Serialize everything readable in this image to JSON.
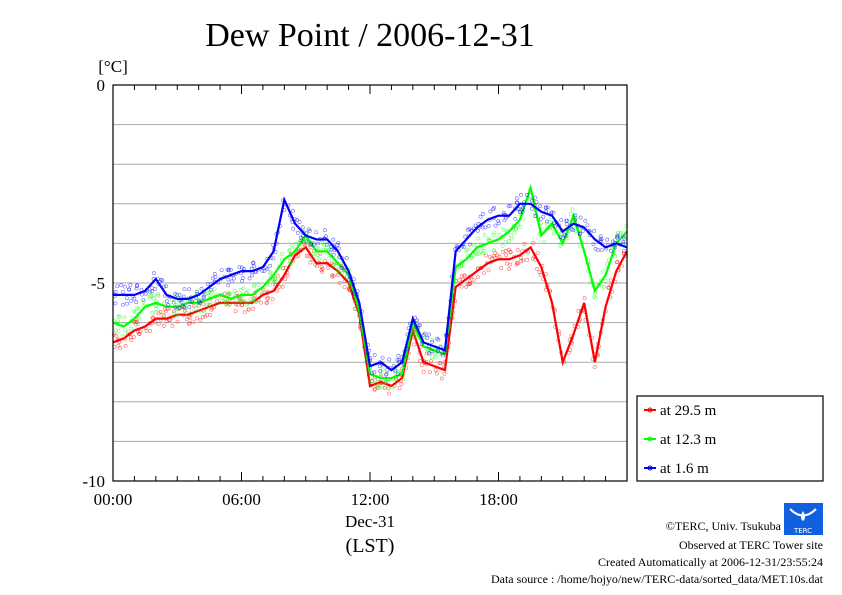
{
  "chart_data": {
    "type": "line",
    "title": "Dew Point / 2006-12-31",
    "ylabel": "[°C]",
    "xlabel": "(LST)",
    "date_label": "Dec-31",
    "ylim": [
      -10,
      0
    ],
    "xlim": [
      0,
      24
    ],
    "y_ticks": [
      {
        "v": 0,
        "label": "0"
      },
      {
        "v": -5,
        "label": "-5"
      },
      {
        "v": -10,
        "label": "-10"
      }
    ],
    "x_ticks": [
      {
        "v": 0,
        "label": "00:00"
      },
      {
        "v": 6,
        "label": "06:00"
      },
      {
        "v": 12,
        "label": "12:00"
      },
      {
        "v": 18,
        "label": "18:00"
      }
    ],
    "grid": true,
    "legend_position": "right-bottom-outside",
    "x": [
      0,
      0.5,
      1,
      1.5,
      2,
      2.5,
      3,
      3.5,
      4,
      4.5,
      5,
      5.5,
      6,
      6.5,
      7,
      7.5,
      8,
      8.5,
      9,
      9.5,
      10,
      10.5,
      11,
      11.5,
      12,
      12.5,
      13,
      13.5,
      14,
      14.5,
      15,
      15.5,
      16,
      16.5,
      17,
      17.5,
      18,
      18.5,
      19,
      19.5,
      20,
      20.5,
      21,
      21.5,
      22,
      22.5,
      23,
      23.5,
      24
    ],
    "series": [
      {
        "name": "at 29.5 m",
        "color": "#ff0000",
        "values": [
          -6.5,
          -6.4,
          -6.2,
          -6.1,
          -5.9,
          -5.9,
          -5.8,
          -5.8,
          -5.7,
          -5.6,
          -5.5,
          -5.5,
          -5.5,
          -5.5,
          -5.3,
          -5.2,
          -4.8,
          -4.3,
          -4.1,
          -4.5,
          -4.5,
          -4.7,
          -5.0,
          -5.8,
          -7.6,
          -7.5,
          -7.6,
          -7.4,
          -6.2,
          -7.0,
          -7.1,
          -7.2,
          -5.1,
          -4.9,
          -4.7,
          -4.5,
          -4.4,
          -4.4,
          -4.3,
          -4.1,
          -4.6,
          -5.5,
          -7.0,
          -6.3,
          -5.5,
          -7.0,
          -5.6,
          -4.7,
          -4.2
        ]
      },
      {
        "name": "at 12.3 m",
        "color": "#00ff00",
        "values": [
          -6.0,
          -6.1,
          -5.9,
          -5.6,
          -5.5,
          -5.6,
          -5.6,
          -5.5,
          -5.5,
          -5.4,
          -5.3,
          -5.4,
          -5.3,
          -5.3,
          -5.1,
          -4.8,
          -4.4,
          -4.2,
          -3.8,
          -4.2,
          -4.2,
          -4.5,
          -4.8,
          -5.7,
          -7.3,
          -7.4,
          -7.4,
          -7.3,
          -6.0,
          -6.6,
          -6.7,
          -6.8,
          -4.6,
          -4.4,
          -4.1,
          -4.0,
          -3.9,
          -3.7,
          -3.4,
          -2.6,
          -3.8,
          -3.5,
          -4.0,
          -3.3,
          -4.2,
          -5.2,
          -4.8,
          -4.0,
          -3.7
        ]
      },
      {
        "name": "at 1.6 m",
        "color": "#0000ff",
        "values": [
          -5.3,
          -5.3,
          -5.3,
          -5.2,
          -4.9,
          -5.3,
          -5.4,
          -5.4,
          -5.3,
          -5.1,
          -4.9,
          -4.8,
          -4.7,
          -4.7,
          -4.6,
          -4.2,
          -2.9,
          -3.5,
          -3.8,
          -3.9,
          -3.9,
          -4.2,
          -4.7,
          -5.5,
          -7.1,
          -7.0,
          -7.2,
          -7.0,
          -5.9,
          -6.5,
          -6.6,
          -6.7,
          -4.2,
          -3.9,
          -3.6,
          -3.4,
          -3.3,
          -3.3,
          -3.0,
          -3.0,
          -3.2,
          -3.3,
          -3.7,
          -3.5,
          -3.6,
          -3.9,
          -4.1,
          -4.0,
          -4.1
        ]
      }
    ]
  },
  "footer": {
    "copyright": "©TERC, Univ. Tsukuba",
    "observed": "Observed at TERC Tower site",
    "created": "Created Automatically at 2006-12-31/23:55:24",
    "source": "Data source : /home/hojyo/new/TERC-data/sorted_data/MET.10s.dat",
    "logo_text": "TERC"
  }
}
